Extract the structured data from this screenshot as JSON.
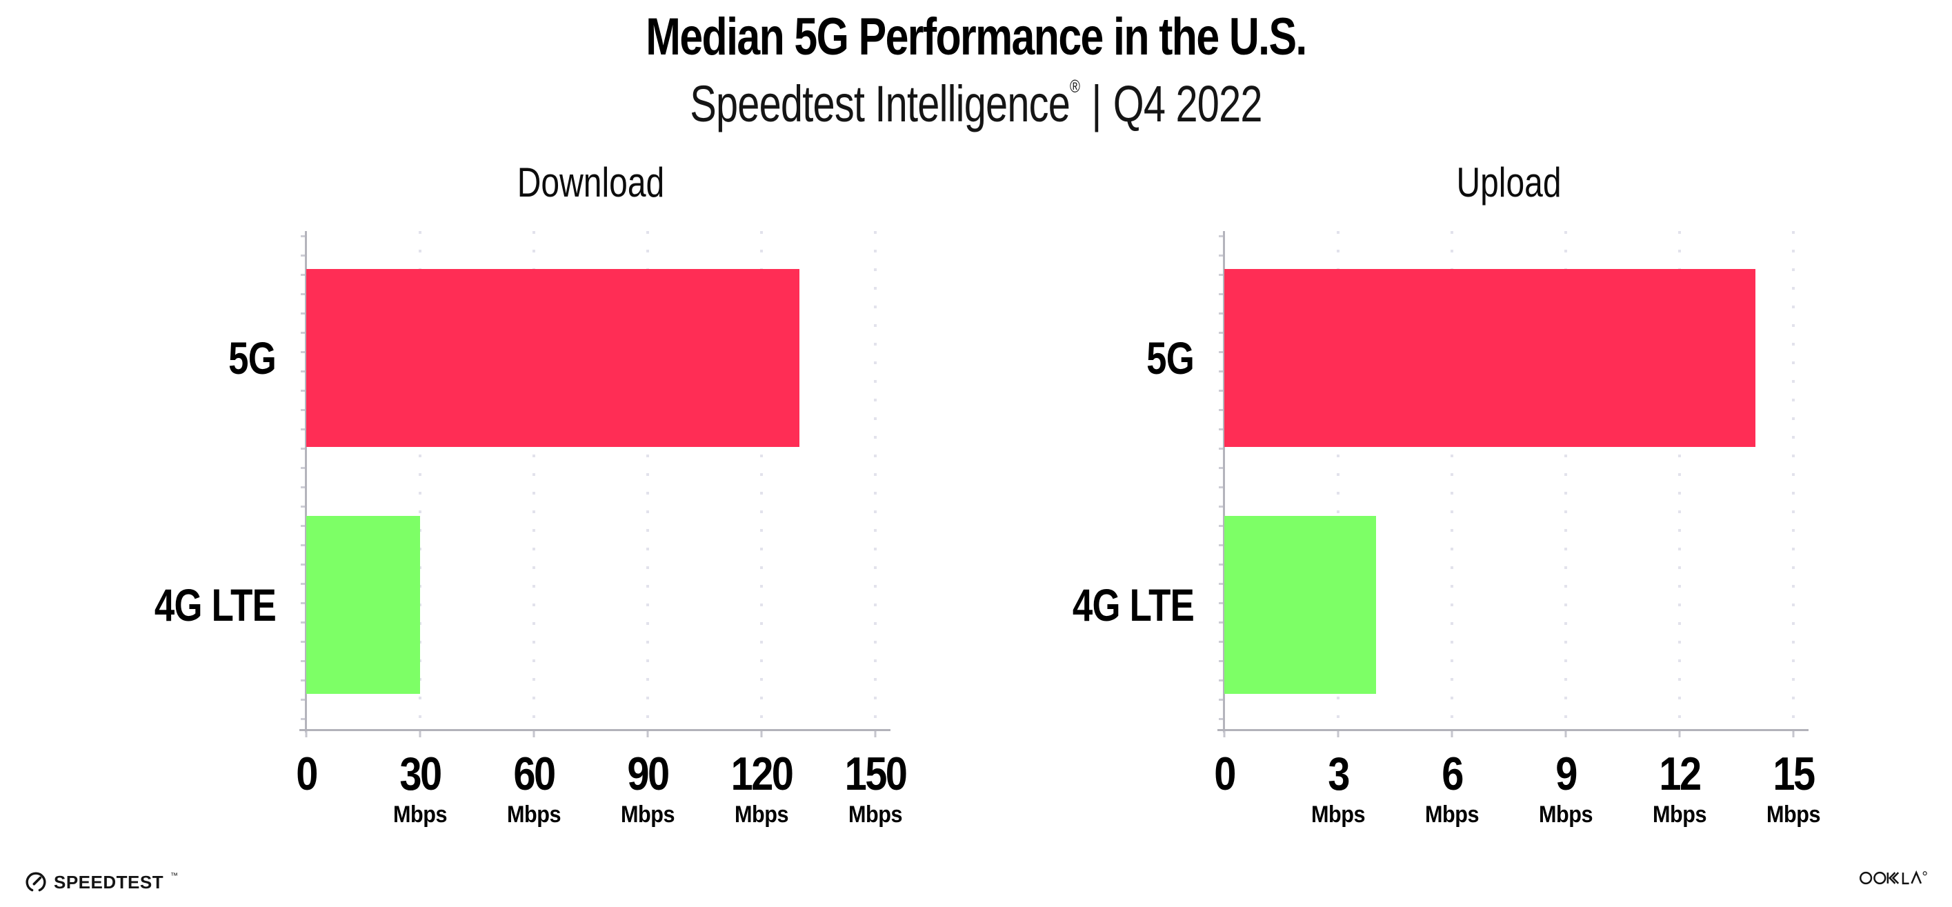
{
  "title": "Median 5G Performance in the U.S.",
  "subtitle": {
    "brand": "Speedtest Intelligence",
    "reg_mark": "®",
    "separator": "|",
    "period": "Q4 2022"
  },
  "colors": {
    "bar_5g": "#ff2d55",
    "bar_4g_lte": "#7dff66",
    "gridline": "#e2e2ec",
    "axis_line": "#b2b2ba",
    "text": "#000000"
  },
  "icons": {
    "speedtest_gauge": "gauge-icon",
    "ookla_wordmark": "ookla-logo"
  },
  "chart_data": [
    {
      "type": "bar",
      "orientation": "horizontal",
      "title": "Download",
      "categories": [
        "5G",
        "4G LTE"
      ],
      "values": [
        130,
        30
      ],
      "unit": "Mbps",
      "xlim": [
        0,
        150
      ],
      "xticks": [
        0,
        30,
        60,
        90,
        120,
        150
      ],
      "tick_unit_label": "Mbps",
      "grid": "vertical-dotted",
      "legend": "none",
      "bar_colors": [
        "#ff2d55",
        "#7dff66"
      ]
    },
    {
      "type": "bar",
      "orientation": "horizontal",
      "title": "Upload",
      "categories": [
        "5G",
        "4G LTE"
      ],
      "values": [
        14,
        4
      ],
      "unit": "Mbps",
      "xlim": [
        0,
        15
      ],
      "xticks": [
        0,
        3,
        6,
        9,
        12,
        15
      ],
      "tick_unit_label": "Mbps",
      "grid": "vertical-dotted",
      "legend": "none",
      "bar_colors": [
        "#ff2d55",
        "#7dff66"
      ]
    }
  ],
  "footer": {
    "speedtest_label": "SPEEDTEST",
    "speedtest_tm": "™",
    "ookla_label": "OOKLA",
    "ookla_reg": "®"
  }
}
